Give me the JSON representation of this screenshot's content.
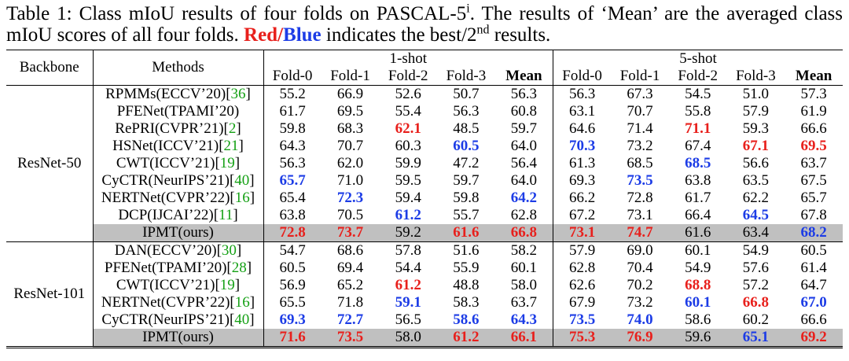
{
  "caption": {
    "lead": "Table 1: Class mIoU results of four folds on PASCAL-5",
    "sup1": "i",
    "mid": ". The results of ‘Mean’ are the averaged class mIoU scores of all four folds. ",
    "red": "Red",
    "slash": "/",
    "blue": "Blue",
    "tail": " indicates the best/2",
    "sup2": "nd",
    "end": " results."
  },
  "table": {
    "header": {
      "backbone": "Backbone",
      "methods": "Methods",
      "groups": [
        "1-shot",
        "5-shot"
      ],
      "columns": [
        "Fold-0",
        "Fold-1",
        "Fold-2",
        "Fold-3",
        "Mean",
        "Fold-0",
        "Fold-1",
        "Fold-2",
        "Fold-3",
        "Mean"
      ]
    },
    "sections": [
      {
        "backbone": "ResNet-50",
        "rows": [
          {
            "method": "RPMMs(ECCV’20)[",
            "ref": "36",
            "close": "]",
            "values": [
              "55.2",
              "66.9",
              "52.6",
              "50.7",
              "56.3",
              "56.3",
              "67.3",
              "54.5",
              "51.0",
              "57.3"
            ],
            "colors": [
              null,
              null,
              null,
              null,
              null,
              null,
              null,
              null,
              null,
              null
            ]
          },
          {
            "method": "PFENet(TPAMI’20)",
            "values": [
              "61.7",
              "69.5",
              "55.4",
              "56.3",
              "60.8",
              "63.1",
              "70.7",
              "55.8",
              "57.9",
              "61.9"
            ],
            "colors": [
              null,
              null,
              null,
              null,
              null,
              null,
              null,
              null,
              null,
              null
            ]
          },
          {
            "method": "RePRI(CVPR’21)[",
            "ref": "2",
            "close": "]",
            "values": [
              "59.8",
              "68.3",
              "62.1",
              "48.5",
              "59.7",
              "64.6",
              "71.4",
              "71.1",
              "59.3",
              "66.6"
            ],
            "colors": [
              null,
              null,
              "#e8201c",
              null,
              null,
              null,
              null,
              "#e8201c",
              null,
              null
            ]
          },
          {
            "method": "HSNet(ICCV’21)[",
            "ref": "21",
            "close": "]",
            "values": [
              "64.3",
              "70.7",
              "60.3",
              "60.5",
              "64.0",
              "70.3",
              "73.2",
              "67.4",
              "67.1",
              "69.5"
            ],
            "colors": [
              null,
              null,
              null,
              "#1c3ce6",
              null,
              "#1c3ce6",
              null,
              null,
              "#e8201c",
              "#e8201c"
            ]
          },
          {
            "method": "CWT(ICCV’21)[",
            "ref": "19",
            "close": "]",
            "values": [
              "56.3",
              "62.0",
              "59.9",
              "47.2",
              "56.4",
              "61.3",
              "68.5",
              "68.5",
              "56.6",
              "63.7"
            ],
            "colors": [
              null,
              null,
              null,
              null,
              null,
              null,
              null,
              "#1c3ce6",
              null,
              null
            ]
          },
          {
            "method": "CyCTR(NeurIPS’21)[",
            "ref": "40",
            "close": "]",
            "values": [
              "65.7",
              "71.0",
              "59.5",
              "59.7",
              "64.0",
              "69.3",
              "73.5",
              "63.8",
              "63.5",
              "67.5"
            ],
            "colors": [
              "#1c3ce6",
              null,
              null,
              null,
              null,
              null,
              "#1c3ce6",
              null,
              null,
              null
            ]
          },
          {
            "method": "NERTNet(CVPR’22)[",
            "ref": "16",
            "close": "]",
            "values": [
              "65.4",
              "72.3",
              "59.4",
              "59.8",
              "64.2",
              "66.2",
              "72.8",
              "61.7",
              "62.2",
              "65.7"
            ],
            "colors": [
              null,
              "#1c3ce6",
              null,
              null,
              "#1c3ce6",
              null,
              null,
              null,
              null,
              null
            ]
          },
          {
            "method": "DCP(IJCAI’22)[",
            "ref": "11",
            "close": "]",
            "values": [
              "63.8",
              "70.5",
              "61.2",
              "55.7",
              "62.8",
              "67.2",
              "73.1",
              "66.4",
              "64.5",
              "67.8"
            ],
            "colors": [
              null,
              null,
              "#1c3ce6",
              null,
              null,
              null,
              null,
              null,
              "#1c3ce6",
              null
            ]
          },
          {
            "method": "IPMT(ours)",
            "shaded": true,
            "values": [
              "72.8",
              "73.7",
              "59.2",
              "61.6",
              "66.8",
              "73.1",
              "74.7",
              "61.6",
              "63.4",
              "68.2"
            ],
            "colors": [
              "#e8201c",
              "#e8201c",
              null,
              "#e8201c",
              "#e8201c",
              "#e8201c",
              "#e8201c",
              null,
              null,
              "#1c3ce6"
            ]
          }
        ]
      },
      {
        "backbone": "ResNet-101",
        "rows": [
          {
            "method": "DAN(ECCV’20)[",
            "ref": "30",
            "close": "]",
            "values": [
              "54.7",
              "68.6",
              "57.8",
              "51.6",
              "58.2",
              "57.9",
              "69.0",
              "60.1",
              "54.9",
              "60.5"
            ],
            "colors": [
              null,
              null,
              null,
              null,
              null,
              null,
              null,
              null,
              null,
              null
            ]
          },
          {
            "method": "PFENet(TPAMI’20)[",
            "ref": "28",
            "close": "]",
            "values": [
              "60.5",
              "69.4",
              "54.4",
              "55.9",
              "60.1",
              "62.8",
              "70.4",
              "54.9",
              "57.6",
              "61.4"
            ],
            "colors": [
              null,
              null,
              null,
              null,
              null,
              null,
              null,
              null,
              null,
              null
            ]
          },
          {
            "method": "CWT(ICCV’21)[",
            "ref": "19",
            "close": "]",
            "values": [
              "56.9",
              "65.2",
              "61.2",
              "48.8",
              "58.0",
              "62.6",
              "70.2",
              "68.8",
              "57.2",
              "64.7"
            ],
            "colors": [
              null,
              null,
              "#e8201c",
              null,
              null,
              null,
              null,
              "#e8201c",
              null,
              null
            ]
          },
          {
            "method": "NERTNet(CVPR’22)[",
            "ref": "16",
            "close": "]",
            "values": [
              "65.5",
              "71.8",
              "59.1",
              "58.3",
              "63.7",
              "67.9",
              "73.2",
              "60.1",
              "66.8",
              "67.0"
            ],
            "colors": [
              null,
              null,
              "#1c3ce6",
              null,
              null,
              null,
              null,
              "#1c3ce6",
              "#e8201c",
              "#1c3ce6"
            ]
          },
          {
            "method": "CyCTR(NeurIPS’21)[",
            "ref": "40",
            "close": "]",
            "values": [
              "69.3",
              "72.7",
              "56.5",
              "58.6",
              "64.3",
              "73.5",
              "74.0",
              "58.6",
              "60.2",
              "66.6"
            ],
            "colors": [
              "#1c3ce6",
              "#1c3ce6",
              null,
              "#1c3ce6",
              "#1c3ce6",
              "#1c3ce6",
              "#1c3ce6",
              null,
              null,
              null
            ]
          },
          {
            "method": "IPMT(ours)",
            "shaded": true,
            "values": [
              "71.6",
              "73.5",
              "58.0",
              "61.2",
              "66.1",
              "75.3",
              "76.9",
              "59.6",
              "65.1",
              "69.2"
            ],
            "colors": [
              "#e8201c",
              "#e8201c",
              null,
              "#e8201c",
              "#e8201c",
              "#e8201c",
              "#e8201c",
              null,
              "#1c3ce6",
              "#e8201c"
            ]
          }
        ]
      }
    ]
  }
}
